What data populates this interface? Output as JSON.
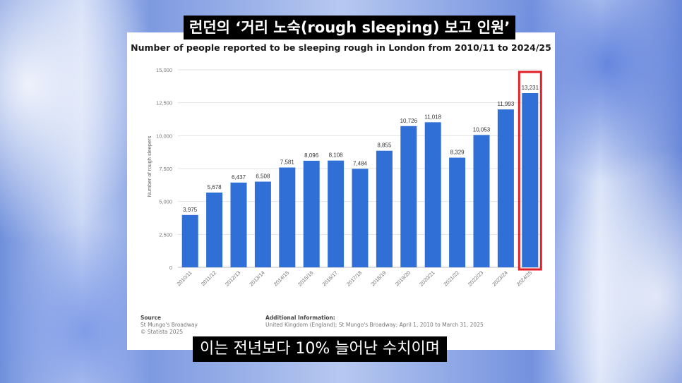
{
  "caption_top": "런던의 ‘거리 노숙(rough sleeping) 보고 인원’",
  "caption_bottom": "이는 전년보다 10% 늘어난 수치이며",
  "footer": {
    "source_label": "Source",
    "source_line1": "St Mungo's Broadway",
    "source_line2": "© Statista 2025",
    "additional_label": "Additional Information:",
    "additional_text": "United Kingdom (England); St Mungo's Broadway; April 1, 2010 to March 31, 2025"
  },
  "colors": {
    "bar": "#2f6fd6",
    "highlight_box": "#e0212b",
    "grid": "#e3e3e3"
  },
  "chart_data": {
    "type": "bar",
    "title": "Number of people reported to be sleeping rough in London from 2010/11 to 2024/25",
    "xlabel": "",
    "ylabel": "Number of rough sleepers",
    "ylim": [
      0,
      15000
    ],
    "yticks": [
      0,
      2500,
      5000,
      7500,
      10000,
      12500,
      15000
    ],
    "ytick_labels": [
      "0",
      "2,500",
      "5,000",
      "7,500",
      "10,000",
      "12,500",
      "15,000"
    ],
    "grid": true,
    "categories": [
      "2010/11",
      "2011/12",
      "2012/13",
      "2013/14",
      "2014/15",
      "2015/16",
      "2016/17",
      "2017/18",
      "2018/19",
      "2019/20",
      "2020/21",
      "2021/22",
      "2022/23",
      "2023/24",
      "2024/25"
    ],
    "values": [
      3975,
      5678,
      6437,
      6508,
      7581,
      8096,
      8108,
      7484,
      8855,
      10726,
      11018,
      8329,
      10053,
      11993,
      13231
    ],
    "value_labels": [
      "3,975",
      "5,678",
      "6,437",
      "6,508",
      "7,581",
      "8,096",
      "8,108",
      "7,484",
      "8,855",
      "10,726",
      "11,018",
      "8,329",
      "10,053",
      "11,993",
      "13,231"
    ],
    "highlighted_category": "2024/25"
  }
}
